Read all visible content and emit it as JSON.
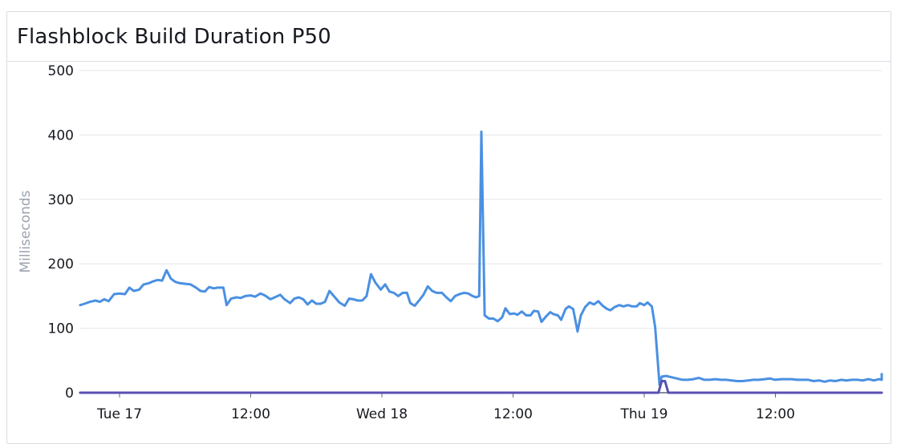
{
  "panel": {
    "title": "Flashblock Build Duration P50"
  },
  "chart_data": {
    "type": "line",
    "title": "Flashblock Build Duration P50",
    "xlabel": "",
    "ylabel": "Milliseconds",
    "ylim": [
      0,
      500
    ],
    "xlim": [
      "Tue 17 04:00",
      "Thu 20 04:30"
    ],
    "y_ticks": [
      0,
      100,
      200,
      300,
      400,
      500
    ],
    "x_ticks": [
      {
        "label": "Tue 17",
        "hour": 24
      },
      {
        "label": "12:00",
        "hour": 36
      },
      {
        "label": "Wed 18",
        "hour": 48
      },
      {
        "label": "12:00",
        "hour": 60
      },
      {
        "label": "Thu 19",
        "hour": 72
      },
      {
        "label": "12:00",
        "hour": 84
      }
    ],
    "grid": true,
    "x_unit": "hours from Mon 16 00:00",
    "series": [
      {
        "color": "#4a90e2",
        "points": [
          [
            20.4,
            136
          ],
          [
            20.8,
            138
          ],
          [
            21.3,
            141
          ],
          [
            21.8,
            143
          ],
          [
            22.2,
            141
          ],
          [
            22.6,
            145
          ],
          [
            23.0,
            142
          ],
          [
            23.5,
            153
          ],
          [
            24.0,
            154
          ],
          [
            24.5,
            153
          ],
          [
            24.9,
            163
          ],
          [
            25.3,
            158
          ],
          [
            25.8,
            160
          ],
          [
            26.2,
            168
          ],
          [
            26.7,
            170
          ],
          [
            27.1,
            173
          ],
          [
            27.5,
            175
          ],
          [
            27.9,
            174
          ],
          [
            28.3,
            190
          ],
          [
            28.7,
            177
          ],
          [
            29.1,
            172
          ],
          [
            29.5,
            170
          ],
          [
            30.0,
            169
          ],
          [
            30.5,
            168
          ],
          [
            31.0,
            163
          ],
          [
            31.4,
            158
          ],
          [
            31.8,
            157
          ],
          [
            32.2,
            164
          ],
          [
            32.6,
            162
          ],
          [
            33.0,
            163
          ],
          [
            33.5,
            163
          ],
          [
            33.8,
            136
          ],
          [
            34.2,
            146
          ],
          [
            34.7,
            148
          ],
          [
            35.1,
            147
          ],
          [
            35.5,
            150
          ],
          [
            36.0,
            151
          ],
          [
            36.4,
            149
          ],
          [
            36.9,
            154
          ],
          [
            37.3,
            151
          ],
          [
            37.8,
            145
          ],
          [
            38.2,
            148
          ],
          [
            38.7,
            152
          ],
          [
            39.1,
            145
          ],
          [
            39.6,
            139
          ],
          [
            40.0,
            146
          ],
          [
            40.4,
            148
          ],
          [
            40.8,
            145
          ],
          [
            41.2,
            137
          ],
          [
            41.6,
            143
          ],
          [
            42.0,
            138
          ],
          [
            42.4,
            138
          ],
          [
            42.8,
            141
          ],
          [
            43.2,
            158
          ],
          [
            43.6,
            150
          ],
          [
            44.1,
            140
          ],
          [
            44.6,
            135
          ],
          [
            45.0,
            146
          ],
          [
            45.4,
            145
          ],
          [
            45.8,
            143
          ],
          [
            46.2,
            143
          ],
          [
            46.6,
            150
          ],
          [
            47.0,
            184
          ],
          [
            47.4,
            171
          ],
          [
            47.9,
            160
          ],
          [
            48.3,
            168
          ],
          [
            48.7,
            157
          ],
          [
            49.1,
            155
          ],
          [
            49.5,
            150
          ],
          [
            49.9,
            155
          ],
          [
            50.3,
            155
          ],
          [
            50.6,
            139
          ],
          [
            51.0,
            135
          ],
          [
            51.4,
            143
          ],
          [
            51.8,
            152
          ],
          [
            52.2,
            165
          ],
          [
            52.6,
            158
          ],
          [
            53.0,
            155
          ],
          [
            53.5,
            155
          ],
          [
            53.9,
            148
          ],
          [
            54.3,
            142
          ],
          [
            54.7,
            150
          ],
          [
            55.1,
            153
          ],
          [
            55.5,
            155
          ],
          [
            55.9,
            154
          ],
          [
            56.3,
            150
          ],
          [
            56.6,
            148
          ],
          [
            56.9,
            150
          ],
          [
            57.1,
            405
          ],
          [
            57.4,
            120
          ],
          [
            57.8,
            115
          ],
          [
            58.2,
            115
          ],
          [
            58.6,
            111
          ],
          [
            59.0,
            117
          ],
          [
            59.3,
            131
          ],
          [
            59.7,
            122
          ],
          [
            60.1,
            123
          ],
          [
            60.4,
            121
          ],
          [
            60.8,
            126
          ],
          [
            61.2,
            120
          ],
          [
            61.6,
            120
          ],
          [
            61.9,
            127
          ],
          [
            62.3,
            126
          ],
          [
            62.6,
            110
          ],
          [
            63.0,
            118
          ],
          [
            63.4,
            125
          ],
          [
            63.7,
            122
          ],
          [
            64.1,
            120
          ],
          [
            64.4,
            113
          ],
          [
            64.8,
            130
          ],
          [
            65.1,
            134
          ],
          [
            65.5,
            130
          ],
          [
            65.9,
            95
          ],
          [
            66.2,
            120
          ],
          [
            66.6,
            133
          ],
          [
            67.0,
            140
          ],
          [
            67.4,
            137
          ],
          [
            67.8,
            142
          ],
          [
            68.2,
            135
          ],
          [
            68.6,
            130
          ],
          [
            68.9,
            128
          ],
          [
            69.3,
            133
          ],
          [
            69.7,
            136
          ],
          [
            70.1,
            134
          ],
          [
            70.5,
            136
          ],
          [
            70.9,
            134
          ],
          [
            71.3,
            134
          ],
          [
            71.6,
            139
          ],
          [
            72.0,
            136
          ],
          [
            72.3,
            140
          ],
          [
            72.7,
            134
          ],
          [
            73.0,
            102
          ],
          [
            73.4,
            12
          ],
          [
            73.6,
            25
          ],
          [
            74.0,
            26
          ],
          [
            74.5,
            24
          ],
          [
            75.0,
            22
          ],
          [
            75.5,
            20
          ],
          [
            76.0,
            20
          ],
          [
            76.5,
            21
          ],
          [
            77.0,
            23
          ],
          [
            77.5,
            20
          ],
          [
            78.0,
            20
          ],
          [
            78.5,
            21
          ],
          [
            79.0,
            20
          ],
          [
            79.5,
            20
          ],
          [
            80.0,
            19
          ],
          [
            80.5,
            18
          ],
          [
            81.0,
            18
          ],
          [
            81.5,
            19
          ],
          [
            82.0,
            20
          ],
          [
            82.5,
            20
          ],
          [
            83.0,
            21
          ],
          [
            83.5,
            22
          ],
          [
            84.0,
            20
          ],
          [
            84.5,
            21
          ],
          [
            85.0,
            21
          ],
          [
            85.5,
            21
          ],
          [
            86.0,
            20
          ],
          [
            86.5,
            20
          ],
          [
            87.0,
            20
          ],
          [
            87.5,
            18
          ],
          [
            88.0,
            19
          ],
          [
            88.5,
            17
          ],
          [
            89.0,
            19
          ],
          [
            89.5,
            18
          ],
          [
            90.0,
            20
          ],
          [
            90.5,
            19
          ],
          [
            91.0,
            20
          ],
          [
            91.5,
            20
          ],
          [
            92.0,
            19
          ],
          [
            92.5,
            21
          ],
          [
            93.0,
            19
          ],
          [
            93.5,
            21
          ],
          [
            94.0,
            20
          ],
          [
            94.5,
            20
          ],
          [
            95.0,
            22
          ],
          [
            95.5,
            21
          ],
          [
            96.0,
            23
          ],
          [
            96.5,
            23
          ],
          [
            97.0,
            24
          ],
          [
            97.5,
            24
          ],
          [
            98.0,
            25
          ],
          [
            98.5,
            24
          ],
          [
            99.0,
            26
          ],
          [
            99.5,
            26
          ],
          [
            100.0,
            27
          ],
          [
            100.5,
            27
          ],
          [
            101.0,
            27
          ],
          [
            101.5,
            28
          ],
          [
            102.0,
            28
          ],
          [
            102.5,
            28
          ],
          [
            103.0,
            28
          ],
          [
            103.5,
            28
          ],
          [
            104.0,
            29
          ],
          [
            104.5,
            28
          ],
          [
            105.0,
            28
          ],
          [
            105.5,
            28
          ],
          [
            106.0,
            27
          ],
          [
            106.5,
            27
          ],
          [
            107.0,
            27
          ],
          [
            107.5,
            27
          ],
          [
            108.0,
            27
          ],
          [
            108.5,
            27
          ]
        ]
      },
      {
        "color": "#5a4fb0",
        "points": [
          [
            20.4,
            0
          ],
          [
            73.3,
            0
          ],
          [
            73.6,
            18
          ],
          [
            73.9,
            18
          ],
          [
            74.2,
            0
          ],
          [
            108.5,
            0
          ]
        ]
      }
    ]
  }
}
